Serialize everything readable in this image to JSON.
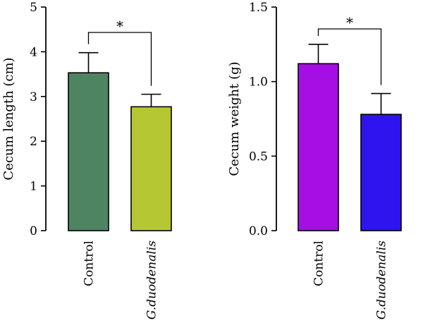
{
  "chart_data": [
    {
      "type": "bar",
      "ylabel": "Cecum length (cm)",
      "ylim": [
        0,
        5
      ],
      "yticks": [
        "0",
        "1",
        "2",
        "3",
        "4",
        "5"
      ],
      "categories": [
        "Control",
        "G.duodenalis"
      ],
      "values": [
        3.53,
        2.77
      ],
      "errors": [
        0.45,
        0.28
      ],
      "colors": [
        "#4f8463",
        "#b5c834"
      ],
      "significance": "*"
    },
    {
      "type": "bar",
      "ylabel": "Cecum weight (g)",
      "ylim": [
        0,
        1.5
      ],
      "yticks": [
        "0.0",
        "0.5",
        "1.0",
        "1.5"
      ],
      "categories": [
        "Control",
        "G.duodenalis"
      ],
      "values": [
        1.12,
        0.78
      ],
      "errors": [
        0.13,
        0.14
      ],
      "colors": [
        "#a50fe4",
        "#2f14ef"
      ],
      "significance": "*"
    }
  ]
}
